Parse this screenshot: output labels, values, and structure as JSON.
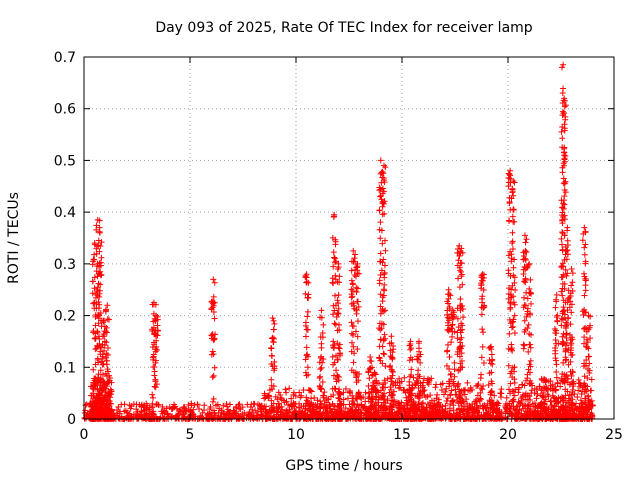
{
  "chart_data": {
    "type": "scatter",
    "title": "Day 093 of 2025, Rate Of TEC Index for receiver lamp",
    "xlabel": "GPS time / hours",
    "ylabel": "ROTI / TECUs",
    "xlim": [
      0,
      25
    ],
    "ylim": [
      0,
      0.7
    ],
    "xticks": [
      0,
      5,
      10,
      15,
      20,
      25
    ],
    "yticks": [
      0,
      0.1,
      0.2,
      0.3,
      0.4,
      0.5,
      0.6,
      0.7
    ],
    "xtick_labels": [
      "0",
      "5",
      "10",
      "15",
      "20",
      "25"
    ],
    "ytick_labels": [
      "0",
      "0.1",
      "0.2",
      "0.3",
      "0.4",
      "0.5",
      "0.6",
      "0.7"
    ],
    "grid": true,
    "marker": "plus",
    "series_color": "#ff0000",
    "note": "Dense point cloud approximated from visible plot; spikes listed as [hour, peak ROTI].",
    "baseline": {
      "x_range": [
        0,
        24
      ],
      "typical_max": 0.03
    },
    "spikes": [
      [
        0.5,
        0.34
      ],
      [
        0.65,
        0.385
      ],
      [
        0.75,
        0.36
      ],
      [
        0.9,
        0.19
      ],
      [
        1.1,
        0.22
      ],
      [
        3.3,
        0.225
      ],
      [
        3.4,
        0.2
      ],
      [
        6.1,
        0.27
      ],
      [
        8.9,
        0.195
      ],
      [
        10.5,
        0.28
      ],
      [
        11.2,
        0.21
      ],
      [
        11.8,
        0.395
      ],
      [
        12.0,
        0.3
      ],
      [
        12.7,
        0.325
      ],
      [
        12.9,
        0.3
      ],
      [
        13.5,
        0.12
      ],
      [
        13.7,
        0.09
      ],
      [
        14.0,
        0.5
      ],
      [
        14.15,
        0.49
      ],
      [
        14.5,
        0.16
      ],
      [
        15.4,
        0.15
      ],
      [
        15.8,
        0.15
      ],
      [
        17.2,
        0.25
      ],
      [
        17.4,
        0.21
      ],
      [
        17.7,
        0.335
      ],
      [
        17.8,
        0.33
      ],
      [
        18.8,
        0.28
      ],
      [
        19.2,
        0.14
      ],
      [
        20.1,
        0.48
      ],
      [
        20.25,
        0.46
      ],
      [
        20.8,
        0.355
      ],
      [
        21.0,
        0.3
      ],
      [
        22.3,
        0.24
      ],
      [
        22.6,
        0.685
      ],
      [
        22.65,
        0.62
      ],
      [
        22.8,
        0.37
      ],
      [
        23.0,
        0.29
      ],
      [
        23.6,
        0.37
      ],
      [
        23.8,
        0.2
      ]
    ]
  }
}
